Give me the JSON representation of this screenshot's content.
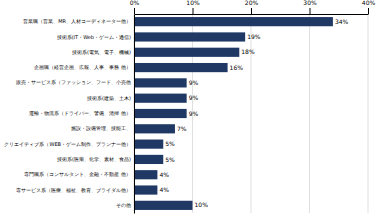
{
  "chart_data": {
    "type": "bar",
    "orientation": "horizontal",
    "categories": [
      "営業職（営業、MR、人材コーディネーター他）",
      "技術系(IT・Web・ゲーム・通信)",
      "技術系(電気、電子、機械)",
      "企画職（経営企画、広報、人事、事務 他）",
      "販売・サービス系（ファッション、フード、小売他",
      "技術系(建築、土木)",
      "運輸・物流系（ドライバー、警備、清掃 他）",
      "施設・設備管理、技能工、",
      "クリエイティブ系（WEB・ゲーム制作、プランナー他）",
      "技術系(医薬、化学、素材、食品)",
      "専門職系（コンサルタント、金融・不動産 他）",
      "専サービス系（医療、福祉、教育、ブライダル他）",
      "その他"
    ],
    "values": [
      34,
      19,
      18,
      16,
      9,
      9,
      9,
      7,
      5,
      5,
      4,
      4,
      10
    ],
    "value_labels": [
      "34%",
      "19%",
      "18%",
      "16%",
      "9%",
      "9%",
      "9%",
      "7%",
      "5%",
      "5%",
      "4%",
      "4%",
      "10%"
    ],
    "data_labels": true,
    "color": "#1f3864",
    "xlim": [
      0,
      40
    ],
    "xticks": [
      {
        "value": 0,
        "label": "0%"
      },
      {
        "value": 10,
        "label": "10%"
      },
      {
        "value": 20,
        "label": "20%"
      },
      {
        "value": 30,
        "label": "30%"
      },
      {
        "value": 40,
        "label": "40%"
      }
    ],
    "grid": true
  }
}
